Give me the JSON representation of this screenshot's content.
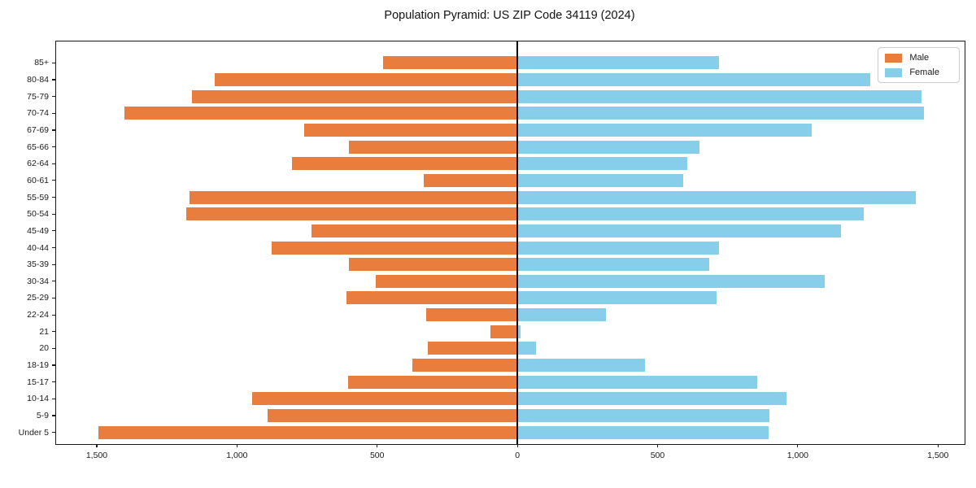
{
  "title": "Population Pyramid: US ZIP Code 34119 (2024)",
  "legend": {
    "male_label": "Male",
    "female_label": "Female"
  },
  "colors": {
    "male": "#e87d3e",
    "female": "#87ceeb",
    "axis": "#1a1a1a",
    "zero_line": "#000000",
    "legend_border": "#cccccc"
  },
  "chart_data": {
    "type": "bar",
    "subtype": "population-pyramid",
    "title": "Population Pyramid: US ZIP Code 34119 (2024)",
    "xlabel": "",
    "ylabel": "",
    "grid": false,
    "legend_position": "upper right",
    "categories": [
      "85+",
      "80-84",
      "75-79",
      "70-74",
      "67-69",
      "65-66",
      "62-64",
      "60-61",
      "55-59",
      "50-54",
      "45-49",
      "40-44",
      "35-39",
      "30-34",
      "25-29",
      "22-24",
      "21",
      "20",
      "18-19",
      "15-17",
      "10-14",
      "5-9",
      "Under 5"
    ],
    "series": [
      {
        "name": "Male",
        "side": "left",
        "color": "#e87d3e",
        "values": [
          480,
          1080,
          1160,
          1400,
          760,
          600,
          805,
          335,
          1170,
          1180,
          735,
          875,
          600,
          505,
          610,
          325,
          95,
          320,
          375,
          605,
          945,
          890,
          1495
        ]
      },
      {
        "name": "Female",
        "side": "right",
        "color": "#87ceeb",
        "values": [
          720,
          1260,
          1440,
          1450,
          1050,
          650,
          605,
          590,
          1420,
          1235,
          1155,
          720,
          685,
          1095,
          710,
          315,
          10,
          65,
          455,
          855,
          960,
          900,
          895
        ]
      }
    ],
    "x_tick_values": [
      -1500,
      -1000,
      -500,
      0,
      500,
      1000,
      1500
    ],
    "x_tick_labels": [
      "1,500",
      "1,000",
      "500",
      "0",
      "500",
      "1,000",
      "1,500"
    ],
    "xlim": [
      -1645,
      1595
    ]
  }
}
